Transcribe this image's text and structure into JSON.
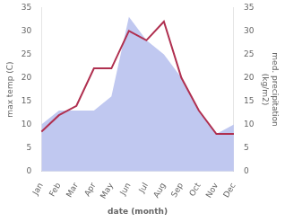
{
  "chart_data": {
    "type": "line",
    "categories": [
      "Jan",
      "Feb",
      "Mar",
      "Apr",
      "May",
      "Jun",
      "Jul",
      "Aug",
      "Sep",
      "Oct",
      "Nov",
      "Dec"
    ],
    "series": [
      {
        "type": "area",
        "color": "#c0c8f0",
        "axis": "y2",
        "values": [
          10,
          13,
          13,
          13,
          16,
          33,
          28,
          25,
          20,
          13,
          8,
          10
        ]
      },
      {
        "type": "line",
        "color": "#b03050",
        "axis": "y",
        "values": [
          8.5,
          12.0,
          14.0,
          22.0,
          22.0,
          30.0,
          28.0,
          32.0,
          20.0,
          13.0,
          8.0,
          8.0
        ]
      }
    ],
    "xlabel": "date (month)",
    "ylabel": "max temp (C)",
    "y2label": "med. precipitation\n(kg/m2)",
    "ylim": [
      0,
      35
    ],
    "yticks": [
      0,
      5,
      10,
      15,
      20,
      25,
      30,
      35
    ],
    "y2lim": [
      0,
      35
    ],
    "y2ticks": [
      0,
      5,
      10,
      15,
      20,
      25,
      30,
      35
    ],
    "grid": false
  }
}
